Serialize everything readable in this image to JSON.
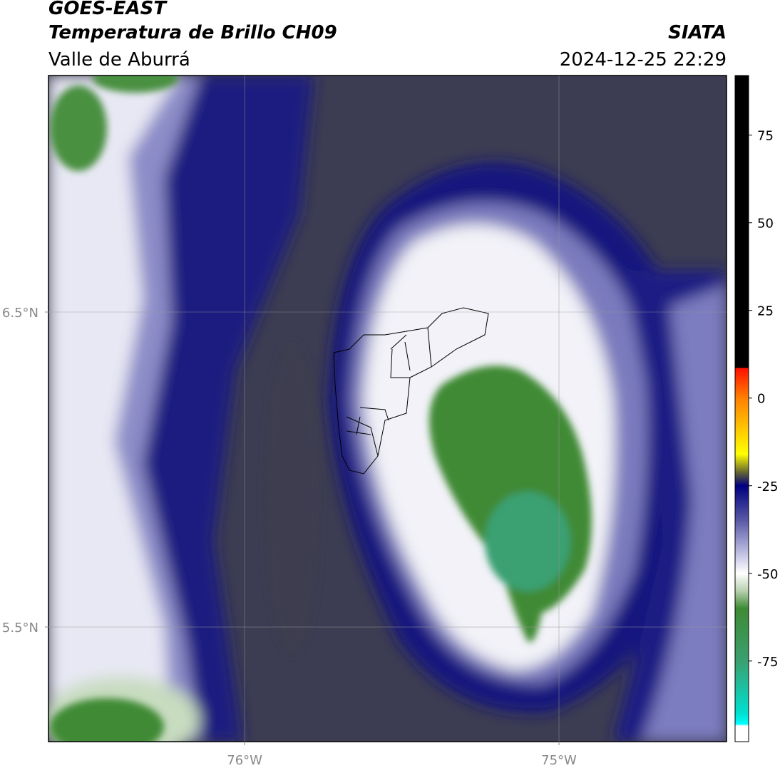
{
  "header": {
    "title": "GOES-EAST",
    "subtitle": "Temperatura de Brillo CH09",
    "region": "Valle de Aburrá",
    "source": "SIATA",
    "datetime": "2024-12-25 22:29"
  },
  "map": {
    "xlim": [
      -76.624,
      -74.467
    ],
    "ylim": [
      5.136,
      7.251
    ],
    "xticks": [
      {
        "value": -76,
        "label": "76°W"
      },
      {
        "value": -75,
        "label": "75°W"
      }
    ],
    "yticks": [
      {
        "value": 6.5,
        "label": "6.5°N"
      },
      {
        "value": 5.5,
        "label": "5.5°N"
      }
    ],
    "grid": true
  },
  "colorbar": {
    "range": [
      -98,
      92
    ],
    "ticks": [
      -75,
      -50,
      -25,
      0,
      25,
      50,
      75
    ],
    "stops": [
      {
        "value": 92,
        "color": "#000000"
      },
      {
        "value": 8.7,
        "color": "#000000"
      },
      {
        "value": 8.5,
        "color": "#ff1000"
      },
      {
        "value": 0,
        "color": "#ff8000"
      },
      {
        "value": -12,
        "color": "#ffe000"
      },
      {
        "value": -16,
        "color": "#ffff00"
      },
      {
        "value": -21,
        "color": "#6a6a30"
      },
      {
        "value": -25,
        "color": "#000080"
      },
      {
        "value": -35,
        "color": "#5a5aa8"
      },
      {
        "value": -45,
        "color": "#c8c8e6"
      },
      {
        "value": -50,
        "color": "#ffffff"
      },
      {
        "value": -55,
        "color": "#b8d0b0"
      },
      {
        "value": -60,
        "color": "#3e8a34"
      },
      {
        "value": -75,
        "color": "#3aa070"
      },
      {
        "value": -90,
        "color": "#00e0d0"
      },
      {
        "value": -93,
        "color": "#00ffff"
      },
      {
        "value": -93.5,
        "color": "#ffffff"
      },
      {
        "value": -98,
        "color": "#ffffff"
      }
    ]
  }
}
